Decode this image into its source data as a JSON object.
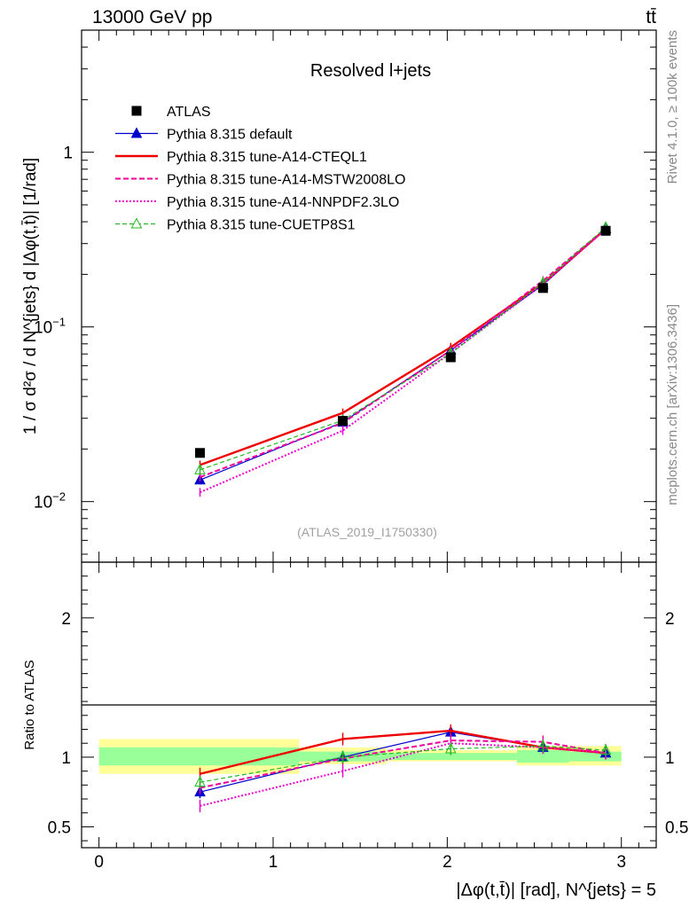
{
  "header": {
    "left_label": "13000 GeV pp",
    "right_label": "tt̄"
  },
  "side": {
    "rivet": "Rivet 4.1.0, ≥ 100k events",
    "mcplots": "mcplots.cern.ch [arXiv:1306.3436]"
  },
  "chart_data": {
    "type": "line",
    "title": "Resolved l+jets",
    "watermark": "(ATLAS_2019_I1750330)",
    "ylabel": "1 / σ d²σ / d N^{jets} d |Δφ(t,t̄)| [1/rad]",
    "ratio_ylabel": "Ratio to ATLAS",
    "xlabel": "|Δφ(t,t̄)| [rad], N^{jets} = 5",
    "xlim": [
      -0.1,
      3.2
    ],
    "ylim": [
      0.0045,
      5.0
    ],
    "ratio_ylim": [
      0.35,
      2.4
    ],
    "x_ticks": [
      0,
      1,
      2,
      3
    ],
    "y_ticks": [
      {
        "value": 0.01,
        "base": "10",
        "exp": "−2"
      },
      {
        "value": 0.1,
        "base": "10",
        "exp": "−1"
      },
      {
        "value": 1,
        "base": "1",
        "exp": ""
      }
    ],
    "ratio_ticks": [
      {
        "value": 0.5,
        "label": "0.5"
      },
      {
        "value": 1,
        "label": "1"
      },
      {
        "value": 2,
        "label": "2"
      }
    ],
    "bins": [
      {
        "lo": 0.0,
        "hi": 1.15
      },
      {
        "lo": 1.15,
        "hi": 1.65
      },
      {
        "lo": 1.65,
        "hi": 2.4
      },
      {
        "lo": 2.4,
        "hi": 2.7
      },
      {
        "lo": 2.7,
        "hi": 3.0
      }
    ],
    "band_green": [
      {
        "lo": 0.94,
        "hi": 1.07
      },
      {
        "lo": 0.97,
        "hi": 1.04
      },
      {
        "lo": 0.98,
        "hi": 1.03
      },
      {
        "lo": 0.96,
        "hi": 1.05
      },
      {
        "lo": 0.97,
        "hi": 1.04
      }
    ],
    "band_yellow": [
      {
        "lo": 0.88,
        "hi": 1.13
      },
      {
        "lo": 0.95,
        "hi": 1.07
      },
      {
        "lo": 0.97,
        "hi": 1.05
      },
      {
        "lo": 0.94,
        "hi": 1.08
      },
      {
        "lo": 0.94,
        "hi": 1.08
      }
    ],
    "x": [
      0.58,
      1.4,
      2.02,
      2.55,
      2.91
    ],
    "data": {
      "name": "ATLAS",
      "values": [
        0.019,
        0.029,
        0.067,
        0.167,
        0.355
      ]
    },
    "series": [
      {
        "name": "Pythia 8.315 default",
        "color": "#0000cc",
        "dash": "",
        "width": 1.2,
        "marker": "triangle-filled",
        "values": [
          0.0133,
          0.0285,
          0.0735,
          0.174,
          0.364
        ],
        "ratio": [
          0.75,
          1.0,
          1.18,
          1.07,
          1.03
        ]
      },
      {
        "name": "Pythia 8.315 tune-A14-CTEQL1",
        "color": "#ee0000",
        "dash": "",
        "width": 2.4,
        "marker": "none",
        "values": [
          0.0162,
          0.0322,
          0.0765,
          0.178,
          0.364
        ],
        "ratio": [
          0.88,
          1.13,
          1.19,
          1.07,
          1.03
        ]
      },
      {
        "name": "Pythia 8.315 tune-A14-MSTW2008LO",
        "color": "#ee0099",
        "dash": "6,3",
        "width": 2.0,
        "marker": "none",
        "values": [
          0.0138,
          0.0282,
          0.0735,
          0.184,
          0.366
        ],
        "ratio": [
          0.78,
          0.99,
          1.12,
          1.11,
          1.03
        ]
      },
      {
        "name": "Pythia 8.315 tune-A14-NNPDF2.3LO",
        "color": "#ee00cc",
        "dash": "2,2",
        "width": 2.0,
        "marker": "none",
        "values": [
          0.0113,
          0.0255,
          0.071,
          0.176,
          0.362
        ],
        "ratio": [
          0.65,
          0.9,
          1.1,
          1.07,
          1.03
        ]
      },
      {
        "name": "Pythia 8.315 tune-CUETP8S1",
        "color": "#22bb22",
        "dash": "5,3",
        "width": 1.2,
        "marker": "triangle-open",
        "values": [
          0.0152,
          0.0292,
          0.0705,
          0.179,
          0.372
        ],
        "ratio": [
          0.82,
          1.0,
          1.06,
          1.08,
          1.05
        ]
      }
    ]
  }
}
